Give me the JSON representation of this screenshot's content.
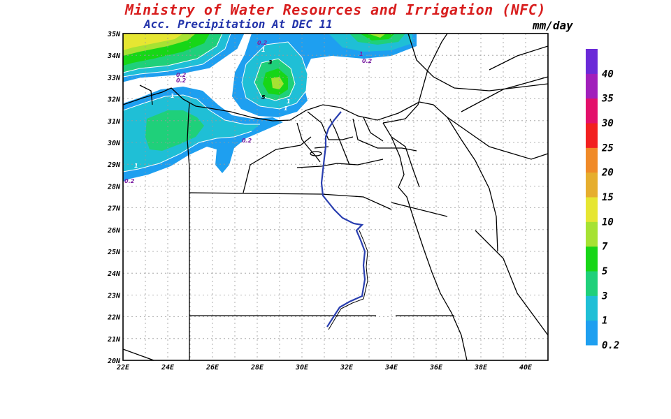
{
  "header": {
    "title": "Ministry of Water Resources and Irrigation (NFC)",
    "subtitle": "Acc. Precipitation  At DEC 11",
    "units": "mm/day"
  },
  "colors": {
    "title": "#d81e1e",
    "subtitle": "#2233aa",
    "river": "#2a3fb0"
  },
  "map": {
    "lat_labels": [
      "35N",
      "34N",
      "33N",
      "32N",
      "31N",
      "30N",
      "29N",
      "28N",
      "27N",
      "26N",
      "25N",
      "24N",
      "23N",
      "22N",
      "21N",
      "20N"
    ],
    "lon_labels": [
      "22E",
      "24E",
      "26E",
      "28E",
      "30E",
      "32E",
      "34E",
      "36E",
      "38E",
      "40E"
    ],
    "contour_labels": [
      {
        "text": "0.2",
        "color": "#7b1fa2"
      },
      {
        "text": "1",
        "color": "#ffffff"
      },
      {
        "text": "0.2",
        "color": "#7b1fa2"
      },
      {
        "text": "1",
        "color": "#7b1fa2"
      },
      {
        "text": "0.2",
        "color": "#7b1fa2"
      },
      {
        "text": "0.2",
        "color": "#7b1fa2"
      },
      {
        "text": "0.2",
        "color": "#ffffff"
      },
      {
        "text": "1",
        "color": "#ffffff"
      },
      {
        "text": "1",
        "color": "#ffffff"
      },
      {
        "text": "3",
        "color": "#000000"
      },
      {
        "text": "5",
        "color": "#000000"
      },
      {
        "text": "1",
        "color": "#ffffff"
      },
      {
        "text": "0.2",
        "color": "#7b1fa2"
      },
      {
        "text": "1",
        "color": "#ffffff"
      },
      {
        "text": "0.2",
        "color": "#7b1fa2"
      }
    ]
  },
  "colorbar": {
    "levels": [
      {
        "label": "0.2",
        "color": "#1e9ff0"
      },
      {
        "label": "1",
        "color": "#1fbfd6"
      },
      {
        "label": "3",
        "color": "#1fd07a"
      },
      {
        "label": "5",
        "color": "#17d617"
      },
      {
        "label": "7",
        "color": "#a6e233"
      },
      {
        "label": "10",
        "color": "#e6e632"
      },
      {
        "label": "15",
        "color": "#e6ae2e"
      },
      {
        "label": "20",
        "color": "#f08a28"
      },
      {
        "label": "25",
        "color": "#f22020"
      },
      {
        "label": "30",
        "color": "#e3106a"
      },
      {
        "label": "35",
        "color": "#a11fbb"
      },
      {
        "label": "40",
        "color": "#6a2ad8"
      }
    ]
  }
}
